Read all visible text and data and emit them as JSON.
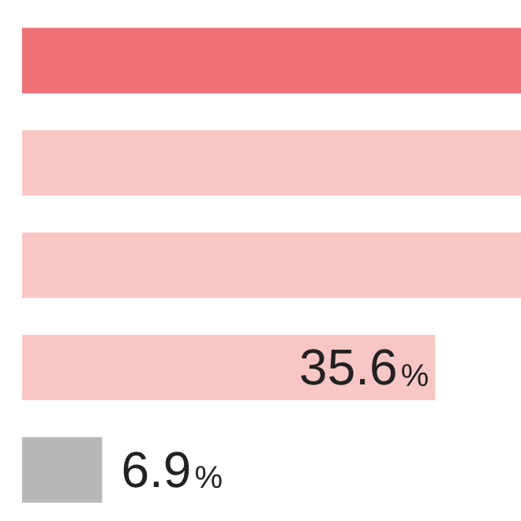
{
  "chart_data": {
    "type": "bar",
    "orientation": "horizontal",
    "categories": [
      null,
      null,
      null,
      null,
      null
    ],
    "values": [
      43,
      43,
      43,
      35.6,
      6.9
    ],
    "value_labels": [
      null,
      null,
      null,
      "35.6%",
      "6.9%"
    ],
    "colors": [
      "#f07078",
      "#f9c6c6",
      "#f9c6c6",
      "#f9c6c6",
      "#b8b8b8"
    ],
    "xlim": [
      0,
      43
    ],
    "tick_labels": false
  }
}
